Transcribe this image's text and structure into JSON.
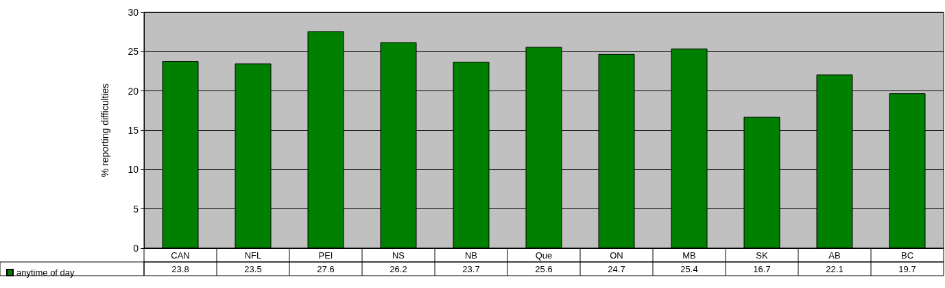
{
  "chart_data": {
    "type": "bar",
    "ylabel": "% reporting difficulties",
    "categories": [
      "CAN",
      "NFL",
      "PEI",
      "NS",
      "NB",
      "Que",
      "ON",
      "MB",
      "SK",
      "AB",
      "BC"
    ],
    "series": [
      {
        "name": "anytime of day",
        "color": "#008000",
        "values": [
          23.8,
          23.5,
          27.6,
          26.2,
          23.7,
          25.6,
          24.7,
          25.4,
          16.7,
          22.1,
          19.7
        ]
      }
    ],
    "ylim": [
      0,
      30
    ],
    "yticks": [
      0,
      5,
      10,
      15,
      20,
      25,
      30
    ],
    "grid": "y",
    "legend": "bottom left",
    "data_labels": true
  }
}
